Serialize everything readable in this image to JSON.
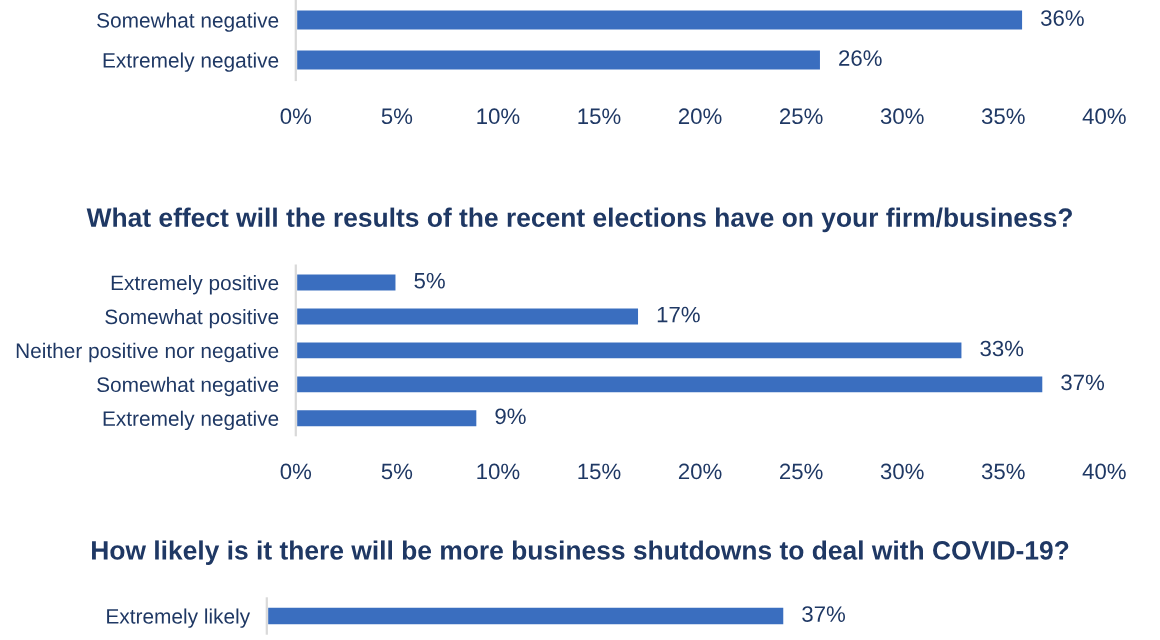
{
  "chart_data": [
    {
      "type": "bar",
      "orientation": "horizontal",
      "categories": [
        "Somewhat negative",
        "Extremely negative"
      ],
      "values": [
        36,
        26
      ],
      "value_labels": [
        "36%",
        "26%"
      ],
      "color": "#3a6ebf",
      "xlim": [
        0,
        40
      ],
      "xticks": [
        {
          "value": 0,
          "label": "0%"
        },
        {
          "value": 5,
          "label": "5%"
        },
        {
          "value": 10,
          "label": "10%"
        },
        {
          "value": 15,
          "label": "15%"
        },
        {
          "value": 20,
          "label": "20%"
        },
        {
          "value": 25,
          "label": "25%"
        },
        {
          "value": 30,
          "label": "30%"
        },
        {
          "value": 35,
          "label": "35%"
        },
        {
          "value": 40,
          "label": "40%"
        }
      ],
      "grid": false,
      "legend": false
    },
    {
      "type": "bar",
      "orientation": "horizontal",
      "title": "What effect will the results of the recent elections have on your firm/business?",
      "categories": [
        "Extremely positive",
        "Somewhat positive",
        "Neither positive nor negative",
        "Somewhat negative",
        "Extremely negative"
      ],
      "values": [
        5,
        17,
        33,
        37,
        9
      ],
      "value_labels": [
        "5%",
        "17%",
        "33%",
        "37%",
        "9%"
      ],
      "color": "#3a6ebf",
      "xlim": [
        0,
        40
      ],
      "xticks": [
        {
          "value": 0,
          "label": "0%"
        },
        {
          "value": 5,
          "label": "5%"
        },
        {
          "value": 10,
          "label": "10%"
        },
        {
          "value": 15,
          "label": "15%"
        },
        {
          "value": 20,
          "label": "20%"
        },
        {
          "value": 25,
          "label": "25%"
        },
        {
          "value": 30,
          "label": "30%"
        },
        {
          "value": 35,
          "label": "35%"
        },
        {
          "value": 40,
          "label": "40%"
        }
      ],
      "grid": false,
      "legend": false
    },
    {
      "type": "bar",
      "orientation": "horizontal",
      "title": "How likely is it there will be more business shutdowns to deal with COVID-19?",
      "categories": [
        "Extremely likely"
      ],
      "values": [
        37
      ],
      "value_labels": [
        "37%"
      ],
      "color": "#3a6ebf",
      "tick_labels": "y",
      "grid": false,
      "legend": false
    }
  ]
}
